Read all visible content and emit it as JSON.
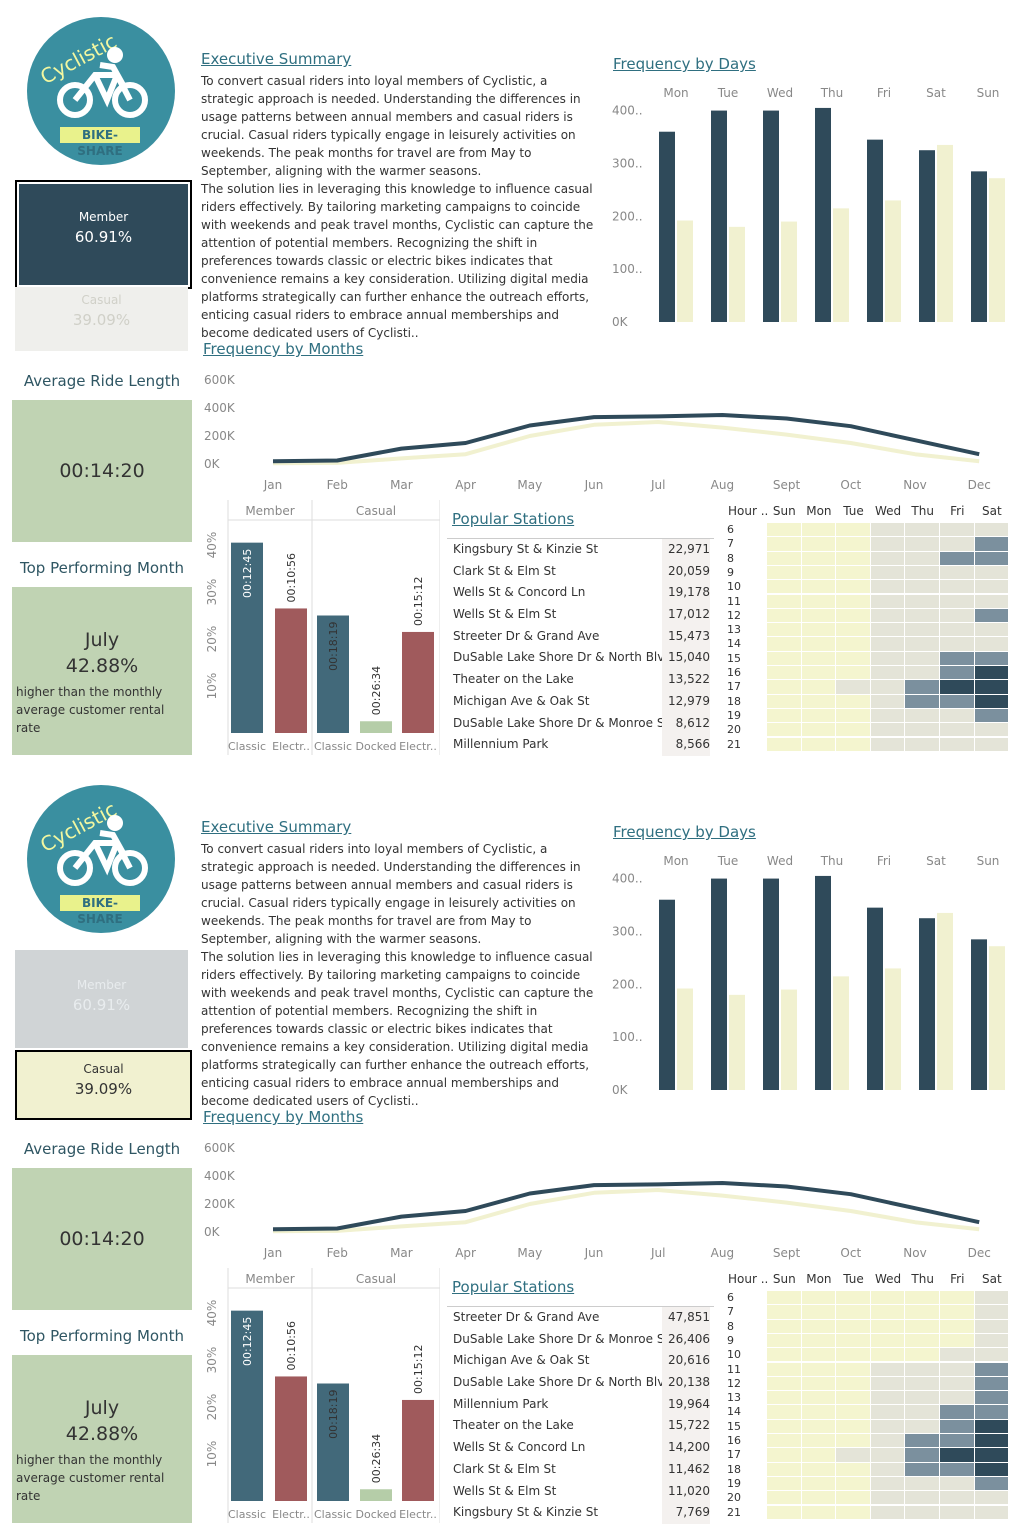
{
  "colors": {
    "member": "#2f4a5a",
    "casual": "#f1f1d0",
    "green_card": "#c0d3b3",
    "teal": "#3a8fa0",
    "classic": "#42697a",
    "electric": "#a05a5c",
    "docked": "#b5cda8"
  },
  "logo": {
    "word": "Cyclistic",
    "badge": "BIKE-SHARE",
    "icon": "cyclist-icon"
  },
  "panels": [
    {
      "segment": {
        "member_label": "Member",
        "member_value": "60.91%",
        "casual_label": "Casual",
        "casual_value": "39.09%",
        "selected": "member"
      },
      "summary_title": "Executive Summary",
      "summary_p1": "To convert casual riders into loyal members of Cyclistic, a strategic approach is needed. Understanding the differences in usage patterns between annual members and casual riders is crucial. Casual riders typically engage in leisurely activities on weekends. The peak months for travel are from May to September, aligning with the warmer seasons.",
      "summary_p2": "The solution lies in leveraging this knowledge to influence casual riders effectively. By tailoring marketing campaigns to coincide with weekends and peak travel months, Cyclistic can capture the attention of potential members. Recognizing the shift in preferences towards classic or electric bikes indicates that convenience remains a key consideration. Utilizing digital media platforms strategically can further enhance the outreach efforts, enticing casual riders to embrace annual memberships and become dedicated users of Cyclisti..",
      "avg_title": "Average Ride Length",
      "avg_value": "00:14:20",
      "top_title": "Top Performing Month",
      "top_month": "July",
      "top_pct": "42.88%",
      "top_note": "higher than the monthly average customer rental rate",
      "days_title": "Frequency by Days",
      "months_title": "Frequency by Months",
      "stations_title": "Popular Stations",
      "stations": [
        {
          "name": "Kingsbury St & Kinzie St",
          "value": "22,971"
        },
        {
          "name": "Clark St & Elm St",
          "value": "20,059"
        },
        {
          "name": "Wells St & Concord Ln",
          "value": "19,178"
        },
        {
          "name": "Wells St & Elm St",
          "value": "17,012"
        },
        {
          "name": "Streeter Dr & Grand Ave",
          "value": "15,473"
        },
        {
          "name": "DuSable Lake Shore Dr & North Blvd",
          "value": "15,040"
        },
        {
          "name": "Theater on the Lake",
          "value": "13,522"
        },
        {
          "name": "Michigan Ave & Oak St",
          "value": "12,979"
        },
        {
          "name": "DuSable Lake Shore Dr & Monroe St",
          "value": "8,612"
        },
        {
          "name": "Millennium Park",
          "value": "8,566"
        }
      ],
      "heatmap": [
        [
          0,
          0,
          0,
          1,
          1,
          1,
          1
        ],
        [
          0,
          0,
          0,
          1,
          1,
          1,
          3
        ],
        [
          0,
          0,
          0,
          1,
          1,
          3,
          3
        ],
        [
          0,
          0,
          0,
          1,
          1,
          1,
          1
        ],
        [
          0,
          0,
          0,
          1,
          1,
          1,
          1
        ],
        [
          0,
          0,
          0,
          1,
          1,
          1,
          1
        ],
        [
          0,
          0,
          0,
          1,
          1,
          1,
          3
        ],
        [
          0,
          0,
          0,
          1,
          1,
          1,
          1
        ],
        [
          0,
          0,
          0,
          1,
          1,
          1,
          1
        ],
        [
          0,
          0,
          0,
          1,
          1,
          3,
          3
        ],
        [
          0,
          0,
          0,
          1,
          1,
          3,
          4
        ],
        [
          0,
          0,
          1,
          1,
          3,
          4,
          4
        ],
        [
          0,
          0,
          0,
          1,
          3,
          3,
          4
        ],
        [
          0,
          0,
          0,
          1,
          1,
          1,
          3
        ],
        [
          0,
          0,
          0,
          1,
          1,
          1,
          1
        ],
        [
          0,
          0,
          0,
          1,
          1,
          1,
          1
        ]
      ]
    },
    {
      "segment": {
        "member_label": "Member",
        "member_value": "60.91%",
        "casual_label": "Casual",
        "casual_value": "39.09%",
        "selected": "casual"
      },
      "summary_title": "Executive Summary",
      "summary_p1": "To convert casual riders into loyal members of Cyclistic, a strategic approach is needed. Understanding the differences in usage patterns between annual members and casual riders is crucial. Casual riders typically engage in leisurely activities on weekends. The peak months for travel are from May to September, aligning with the warmer seasons.",
      "summary_p2": "The solution lies in leveraging this knowledge to influence casual riders effectively. By tailoring marketing campaigns to coincide with weekends and peak travel months, Cyclistic can capture the attention of potential members. Recognizing the shift in preferences towards classic or electric bikes indicates that convenience remains a key consideration. Utilizing digital media platforms strategically can further enhance the outreach efforts, enticing casual riders to embrace annual memberships and become dedicated users of Cyclisti..",
      "avg_title": "Average Ride Length",
      "avg_value": "00:14:20",
      "top_title": "Top Performing Month",
      "top_month": "July",
      "top_pct": "42.88%",
      "top_note": "higher than the monthly average customer rental rate",
      "days_title": "Frequency by Days",
      "months_title": "Frequency by Months",
      "stations_title": "Popular Stations",
      "stations": [
        {
          "name": "Streeter Dr & Grand Ave",
          "value": "47,851"
        },
        {
          "name": "DuSable Lake Shore Dr & Monroe St",
          "value": "26,406"
        },
        {
          "name": "Michigan Ave & Oak St",
          "value": "20,616"
        },
        {
          "name": "DuSable Lake Shore Dr & North Blvd",
          "value": "20,138"
        },
        {
          "name": "Millennium Park",
          "value": "19,964"
        },
        {
          "name": "Theater on the Lake",
          "value": "15,722"
        },
        {
          "name": "Wells St & Concord Ln",
          "value": "14,200"
        },
        {
          "name": "Clark St & Elm St",
          "value": "11,462"
        },
        {
          "name": "Wells St & Elm St",
          "value": "11,020"
        },
        {
          "name": "Kingsbury St & Kinzie St",
          "value": "7,769"
        }
      ],
      "heatmap": [
        [
          0,
          0,
          0,
          0,
          0,
          0,
          1
        ],
        [
          0,
          0,
          0,
          0,
          0,
          0,
          1
        ],
        [
          0,
          0,
          0,
          0,
          0,
          0,
          1
        ],
        [
          0,
          0,
          0,
          0,
          0,
          0,
          1
        ],
        [
          0,
          0,
          0,
          0,
          0,
          1,
          1
        ],
        [
          0,
          0,
          0,
          1,
          1,
          1,
          3
        ],
        [
          0,
          0,
          0,
          1,
          1,
          1,
          3
        ],
        [
          0,
          0,
          0,
          1,
          1,
          1,
          3
        ],
        [
          0,
          0,
          0,
          1,
          1,
          3,
          3
        ],
        [
          0,
          0,
          0,
          1,
          1,
          3,
          4
        ],
        [
          0,
          0,
          0,
          1,
          3,
          3,
          4
        ],
        [
          0,
          0,
          1,
          1,
          3,
          4,
          4
        ],
        [
          0,
          0,
          0,
          1,
          3,
          3,
          4
        ],
        [
          0,
          0,
          0,
          1,
          1,
          1,
          3
        ],
        [
          0,
          0,
          0,
          1,
          1,
          1,
          1
        ],
        [
          0,
          0,
          0,
          1,
          1,
          1,
          1
        ]
      ]
    }
  ],
  "heatmap_axis": {
    "hour_label": "Hour ..",
    "days": [
      "Sun",
      "Mon",
      "Tue",
      "Wed",
      "Thu",
      "Fri",
      "Sat"
    ],
    "hours": [
      "6",
      "7",
      "8",
      "9",
      "10",
      "11",
      "12",
      "13",
      "14",
      "15",
      "16",
      "17",
      "18",
      "19",
      "20",
      "21"
    ]
  },
  "chart_data": [
    {
      "type": "bar",
      "title": "Frequency by Days",
      "categories": [
        "Mon",
        "Tue",
        "Wed",
        "Thu",
        "Fri",
        "Sat",
        "Sun"
      ],
      "yticks": [
        "400..",
        "300..",
        "200..",
        "100..",
        "0K"
      ],
      "ylim": [
        0,
        420
      ],
      "series": [
        {
          "values": [
            360,
            400,
            400,
            405,
            345,
            325,
            285
          ]
        },
        {
          "values": [
            192,
            180,
            190,
            215,
            230,
            335,
            272
          ]
        }
      ]
    },
    {
      "type": "line",
      "title": "Frequency by Months",
      "categories": [
        "Jan",
        "Feb",
        "Mar",
        "Apr",
        "May",
        "Jun",
        "Jul",
        "Aug",
        "Sept",
        "Oct",
        "Nov",
        "Dec"
      ],
      "yticks": [
        "600K",
        "400K",
        "200K",
        "0K"
      ],
      "ylim": [
        0,
        600
      ],
      "series": [
        {
          "values": [
            20,
            25,
            110,
            150,
            275,
            335,
            340,
            350,
            325,
            270,
            170,
            70
          ]
        },
        {
          "values": [
            5,
            8,
            40,
            70,
            200,
            280,
            300,
            260,
            210,
            150,
            70,
            20
          ]
        }
      ]
    },
    {
      "type": "bar",
      "title": "",
      "categories": [
        "Classic",
        "Electr..",
        "Classic",
        "Docked",
        "Electr.."
      ],
      "groups": [
        "Member",
        "Casual"
      ],
      "yticks": [
        "40%",
        "30%",
        "20%",
        "10%"
      ],
      "values": [
        40.5,
        26.5,
        25,
        2.5,
        21.5
      ],
      "labels": [
        "00:12:45",
        "00:10:56",
        "00:18:19",
        "00:26:34",
        "00:15:12"
      ]
    }
  ]
}
